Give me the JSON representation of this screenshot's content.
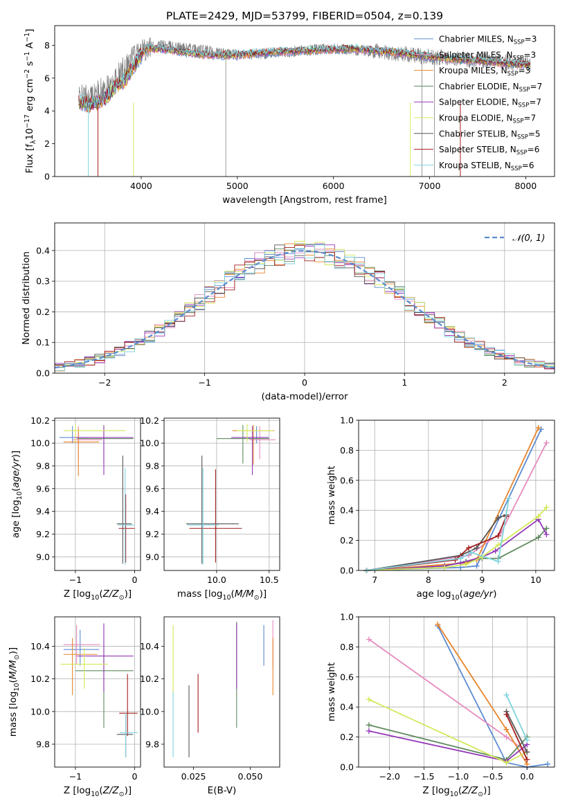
{
  "title": "PLATE=2429, MJD=53799, FIBERID=0504, z=0.139",
  "model_colors": [
    "#5b8bd0",
    "#e68bbf",
    "#e8842a",
    "#5f8a5f",
    "#9337b8",
    "#d4e85a",
    "#555555",
    "#a21c1c",
    "#7fd3de"
  ],
  "chart_data": [
    {
      "id": "spectrum",
      "type": "line",
      "xlabel": "wavelength [Angstrom, rest frame]",
      "ylabel": "Flux [f_λ10^-17 erg cm^-2 s^-1 A^-1]",
      "xlim": [
        3100,
        8300
      ],
      "ylim": [
        0,
        9.2
      ],
      "xticks": [
        4000,
        5000,
        6000,
        7000,
        8000
      ],
      "yticks": [
        0,
        2,
        4,
        6,
        8
      ],
      "grid": false,
      "legend_position": "top-right",
      "data_color": "#808080",
      "data_x": [
        3350,
        3500,
        3600,
        3700,
        3800,
        3900,
        4000,
        4200,
        4500,
        5000,
        5500,
        6000,
        6500,
        7000,
        7500,
        8000,
        8050
      ],
      "data_y": [
        4.8,
        4.9,
        5.3,
        5.5,
        6.5,
        7.2,
        7.8,
        8.0,
        7.8,
        7.4,
        7.6,
        7.8,
        7.6,
        7.3,
        7.1,
        6.9,
        6.8
      ],
      "model_x": [
        3350,
        3450,
        3550,
        3650,
        3750,
        3850,
        3950,
        4050,
        4200,
        4400,
        4700,
        5000,
        5400,
        5800,
        6200,
        6600,
        7000,
        7400,
        7800,
        8050
      ],
      "model_y": [
        4.6,
        4.4,
        4.5,
        4.9,
        5.6,
        6.0,
        7.0,
        7.8,
        7.8,
        7.6,
        7.4,
        7.4,
        7.6,
        7.7,
        7.8,
        7.6,
        7.3,
        7.1,
        6.9,
        6.8
      ],
      "model_drops": [
        3450,
        3550,
        3920,
        6800,
        7320
      ],
      "legend": [
        [
          "Chabrier MILES, N",
          "SSP",
          "=3"
        ],
        [
          "Salpeter MILES, N",
          "SSP",
          "=3"
        ],
        [
          "Kroupa MILES, N",
          "SSP",
          "=3"
        ],
        [
          "Chabrier ELODIE, N",
          "SSP",
          "=7"
        ],
        [
          "Salpeter ELODIE, N",
          "SSP",
          "=7"
        ],
        [
          "Kroupa ELODIE, N",
          "SSP",
          "=7"
        ],
        [
          "Chabrier STELIB, N",
          "SSP",
          "=5"
        ],
        [
          "Salpeter STELIB, N",
          "SSP",
          "=6"
        ],
        [
          "Kroupa STELIB, N",
          "SSP",
          "=6"
        ]
      ]
    },
    {
      "id": "residuals",
      "type": "line",
      "xlabel": "(data-model)/error",
      "ylabel": "Normed distribution",
      "xlim": [
        -2.5,
        2.5
      ],
      "ylim": [
        0,
        0.49
      ],
      "xticks": [
        -2,
        -1,
        0,
        1,
        2
      ],
      "yticks": [
        0.0,
        0.1,
        0.2,
        0.3,
        0.4
      ],
      "grid": true,
      "legend_position": "top-right",
      "gaussian_label": "𝒩(0, 1)",
      "bin_width": 0.1,
      "gaussian_color": "#5b8bd0"
    },
    {
      "id": "age-vs-Z",
      "type": "scatter",
      "xlabel": "Z [log10(Z/Z⊙)]",
      "ylabel": "age [log10(age/yr)]",
      "xlim": [
        -1.35,
        0.1
      ],
      "ylim": [
        8.88,
        10.22
      ],
      "xticks": [
        -1,
        0
      ],
      "yticks": [
        9.0,
        9.2,
        9.4,
        9.6,
        9.8,
        10.0,
        10.2
      ],
      "grid": true,
      "points": [
        {
          "x": -1.05,
          "xerr": [
            0.22,
            0.28
          ],
          "y": 10.05,
          "yerr": [
            0.05,
            0.1
          ]
        },
        {
          "x": -0.95,
          "xerr": [
            0.1,
            0.4
          ],
          "y": 10.03,
          "yerr": [
            0.17,
            0.12
          ]
        },
        {
          "x": -0.95,
          "xerr": [
            0.25,
            0.35
          ],
          "y": 10.01,
          "yerr": [
            0.3,
            0.12
          ]
        },
        {
          "x": -0.52,
          "xerr": [
            0.45,
            0.5
          ],
          "y": 10.04,
          "yerr": [
            0.22,
            0.12
          ]
        },
        {
          "x": -0.52,
          "xerr": [
            0.5,
            0.5
          ],
          "y": 10.05,
          "yerr": [
            0.33,
            0.1
          ]
        },
        {
          "x": -1.0,
          "xerr": [
            0.2,
            0.85
          ],
          "y": 10.11,
          "yerr": [
            0.1,
            0.06
          ]
        },
        {
          "x": -0.2,
          "xerr": [
            0.1,
            0.15
          ],
          "y": 9.29,
          "yerr": [
            0.35,
            0.6
          ]
        },
        {
          "x": -0.15,
          "xerr": [
            0.12,
            0.15
          ],
          "y": 9.25,
          "yerr": [
            0.3,
            0.3
          ]
        },
        {
          "x": -0.16,
          "xerr": [
            0.12,
            0.15
          ],
          "y": 9.28,
          "yerr": [
            0.35,
            0.5
          ]
        }
      ]
    },
    {
      "id": "age-vs-mass",
      "type": "scatter",
      "xlabel": "mass [log10(M/M⊙)]",
      "ylabel": "",
      "xlim": [
        9.5,
        10.6
      ],
      "ylim": [
        8.88,
        10.22
      ],
      "xticks": [
        10.0,
        10.5
      ],
      "yticks": [
        9.0,
        9.2,
        9.4,
        9.6,
        9.8,
        10.0,
        10.2
      ],
      "grid": true,
      "points": [
        {
          "x": 10.38,
          "xerr": [
            0.12,
            0.12
          ],
          "y": 10.05,
          "yerr": [
            0.05,
            0.1
          ]
        },
        {
          "x": 10.41,
          "xerr": [
            0.1,
            0.15
          ],
          "y": 10.03,
          "yerr": [
            0.17,
            0.12
          ]
        },
        {
          "x": 10.35,
          "xerr": [
            0.2,
            0.2
          ],
          "y": 10.11,
          "yerr": [
            0.3,
            0.05
          ]
        },
        {
          "x": 10.25,
          "xerr": [
            0.25,
            0.25
          ],
          "y": 10.04,
          "yerr": [
            0.22,
            0.12
          ]
        },
        {
          "x": 10.34,
          "xerr": [
            0.2,
            0.15
          ],
          "y": 10.05,
          "yerr": [
            0.33,
            0.1
          ]
        },
        {
          "x": 10.29,
          "xerr": [
            0.1,
            0.25
          ],
          "y": 10.11,
          "yerr": [
            0.1,
            0.06
          ]
        },
        {
          "x": 9.86,
          "xerr": [
            0.15,
            0.35
          ],
          "y": 9.29,
          "yerr": [
            0.35,
            0.6
          ]
        },
        {
          "x": 9.99,
          "xerr": [
            0.25,
            0.25
          ],
          "y": 9.25,
          "yerr": [
            0.3,
            0.52
          ]
        },
        {
          "x": 9.87,
          "xerr": [
            0.15,
            0.15
          ],
          "y": 9.28,
          "yerr": [
            0.35,
            0.5
          ]
        }
      ]
    },
    {
      "id": "mass-weight-vs-age",
      "type": "line",
      "xlabel": "age [log10(age/yr)]",
      "ylabel": "mass weight",
      "xlim": [
        6.7,
        10.35
      ],
      "ylim": [
        0,
        1.0
      ],
      "xticks": [
        7,
        8,
        9,
        10
      ],
      "yticks": [
        0.0,
        0.2,
        0.4,
        0.6,
        0.8,
        1.0
      ],
      "grid": true,
      "series": [
        {
          "x": [
            6.85,
            8.6,
            8.9,
            10.1
          ],
          "y": [
            0.0,
            0.02,
            0.03,
            0.94
          ]
        },
        {
          "x": [
            6.85,
            8.75,
            9.35,
            10.2
          ],
          "y": [
            0.0,
            0.1,
            0.25,
            0.85
          ]
        },
        {
          "x": [
            6.85,
            8.7,
            8.9,
            10.05
          ],
          "y": [
            0.0,
            0.05,
            0.07,
            0.95
          ]
        },
        {
          "x": [
            6.85,
            8.3,
            8.7,
            9.0,
            9.3,
            10.05,
            10.2
          ],
          "y": [
            0.0,
            0.03,
            0.06,
            0.08,
            0.08,
            0.22,
            0.28
          ]
        },
        {
          "x": [
            6.85,
            8.3,
            8.6,
            9.0,
            9.25,
            10.05,
            10.2
          ],
          "y": [
            0.0,
            0.03,
            0.05,
            0.09,
            0.13,
            0.34,
            0.24
          ]
        },
        {
          "x": [
            6.85,
            8.3,
            8.7,
            9.0,
            9.3,
            10.05,
            10.2
          ],
          "y": [
            0.0,
            0.02,
            0.04,
            0.09,
            0.17,
            0.36,
            0.42
          ]
        },
        {
          "x": [
            6.85,
            8.6,
            8.9,
            9.3,
            9.45
          ],
          "y": [
            0.0,
            0.1,
            0.15,
            0.35,
            0.37
          ]
        },
        {
          "x": [
            6.85,
            8.5,
            8.75,
            9.3,
            9.45
          ],
          "y": [
            0.0,
            0.07,
            0.15,
            0.23,
            0.36
          ]
        },
        {
          "x": [
            6.85,
            8.6,
            8.8,
            9.3,
            9.5
          ],
          "y": [
            0.0,
            0.08,
            0.12,
            0.06,
            0.48
          ]
        }
      ]
    },
    {
      "id": "mass-vs-Z",
      "type": "scatter",
      "xlabel": "Z [log10(Z/Z⊙)]",
      "ylabel": "mass [log10(M/M⊙)]",
      "xlim": [
        -1.35,
        0.1
      ],
      "ylim": [
        9.66,
        10.58
      ],
      "xticks": [
        -1,
        0
      ],
      "yticks": [
        9.8,
        10.0,
        10.2,
        10.4
      ],
      "grid": true,
      "points": [
        {
          "x": -0.92,
          "xerr": [
            0.28,
            0.32
          ],
          "y": 10.38,
          "yerr": [
            0.1,
            0.12
          ]
        },
        {
          "x": -0.98,
          "xerr": [
            0.22,
            0.4
          ],
          "y": 10.41,
          "yerr": [
            0.12,
            0.12
          ]
        },
        {
          "x": -1.05,
          "xerr": [
            0.15,
            0.42
          ],
          "y": 10.35,
          "yerr": [
            0.25,
            0.1
          ]
        },
        {
          "x": -0.52,
          "xerr": [
            0.48,
            0.5
          ],
          "y": 10.25,
          "yerr": [
            0.35,
            0.2
          ]
        },
        {
          "x": -0.52,
          "xerr": [
            0.45,
            0.5
          ],
          "y": 10.34,
          "yerr": [
            0.22,
            0.2
          ]
        },
        {
          "x": -0.85,
          "xerr": [
            0.4,
            0.4
          ],
          "y": 10.29,
          "yerr": [
            0.15,
            0.1
          ]
        },
        {
          "x": -0.15,
          "xerr": [
            0.15,
            0.12
          ],
          "y": 9.86,
          "yerr": [
            0.14,
            0.12
          ]
        },
        {
          "x": -0.12,
          "xerr": [
            0.14,
            0.17
          ],
          "y": 9.99,
          "yerr": [
            0.14,
            0.24
          ]
        },
        {
          "x": -0.15,
          "xerr": [
            0.1,
            0.2
          ],
          "y": 9.87,
          "yerr": [
            0.15,
            0.12
          ]
        }
      ]
    },
    {
      "id": "mass-vs-EBV",
      "type": "scatter",
      "xlabel": "E(B-V)",
      "ylabel": "",
      "xlim": [
        0.012,
        0.063
      ],
      "ylim": [
        9.66,
        10.58
      ],
      "xticks": [
        0.025,
        0.05
      ],
      "xtick_labels": [
        "0.025",
        "0.050"
      ],
      "yticks": [
        9.8,
        10.0,
        10.2,
        10.4
      ],
      "grid": false,
      "points": [
        {
          "x": 0.056,
          "y": 10.38,
          "yerr": [
            0.1,
            0.15
          ]
        },
        {
          "x": 0.06,
          "y": 10.41,
          "yerr": [
            0.14,
            0.15
          ]
        },
        {
          "x": 0.06,
          "y": 10.35,
          "yerr": [
            0.25,
            0.1
          ]
        },
        {
          "x": 0.044,
          "y": 10.25,
          "yerr": [
            0.35,
            0.3
          ]
        },
        {
          "x": 0.044,
          "y": 10.34,
          "yerr": [
            0.2,
            0.2
          ]
        },
        {
          "x": 0.016,
          "y": 10.29,
          "yerr": [
            0.2,
            0.24
          ]
        },
        {
          "x": 0.023,
          "y": 9.86,
          "yerr": [
            0.14,
            0.3
          ]
        },
        {
          "x": 0.027,
          "y": 9.99,
          "yerr": [
            0.12,
            0.24
          ]
        },
        {
          "x": 0.016,
          "y": 9.87,
          "yerr": [
            0.15,
            0.25
          ]
        }
      ]
    },
    {
      "id": "mass-weight-vs-Z",
      "type": "line",
      "xlabel": "Z [log10(Z/Z⊙)]",
      "ylabel": "mass weight",
      "xlim": [
        -2.45,
        0.4
      ],
      "ylim": [
        0,
        1.0
      ],
      "xticks": [
        -2.0,
        -1.5,
        -1.0,
        -0.5,
        0.0
      ],
      "yticks": [
        0.0,
        0.2,
        0.4,
        0.6,
        0.8,
        1.0
      ],
      "grid": true,
      "series": [
        {
          "x": [
            -1.3,
            -0.3,
            0.0,
            0.3
          ],
          "y": [
            0.94,
            0.03,
            0.0,
            0.02
          ]
        },
        {
          "x": [
            -2.3,
            -0.3,
            0.0
          ],
          "y": [
            0.85,
            0.2,
            0.1
          ]
        },
        {
          "x": [
            -1.3,
            -0.3,
            0.0
          ],
          "y": [
            0.95,
            0.25,
            0.02
          ]
        },
        {
          "x": [
            -2.3,
            -0.3,
            0.0
          ],
          "y": [
            0.28,
            0.05,
            0.2
          ]
        },
        {
          "x": [
            -2.3,
            -0.3,
            0.0
          ],
          "y": [
            0.24,
            0.04,
            0.15
          ]
        },
        {
          "x": [
            -2.3,
            -0.3,
            0.0
          ],
          "y": [
            0.45,
            0.03,
            0.1
          ]
        },
        {
          "x": [
            -0.3,
            0.0
          ],
          "y": [
            0.37,
            0.1
          ]
        },
        {
          "x": [
            -0.3,
            0.0
          ],
          "y": [
            0.35,
            0.05
          ]
        },
        {
          "x": [
            -0.3,
            0.0
          ],
          "y": [
            0.48,
            0.18
          ]
        }
      ]
    }
  ]
}
